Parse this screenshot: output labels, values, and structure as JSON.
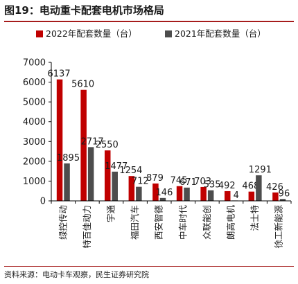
{
  "figure": {
    "title": "图19：电动重卡配套电机市场格局",
    "source": "资料来源：电动卡车观察，民生证券研究院"
  },
  "colors": {
    "accent": "#a61c1c",
    "series_2022": "#c00000",
    "series_2021": "#4d4d4d"
  },
  "chart_data": {
    "type": "bar",
    "categories": [
      "绿控传动",
      "特百佳动力",
      "宇通",
      "福田汽车",
      "西安智德",
      "中车时代",
      "众联能创",
      "朗高电机",
      "法士特",
      "徐工新能源"
    ],
    "series": [
      {
        "name": "2022年配套数量（台）",
        "values": [
          6137,
          5610,
          2550,
          1254,
          879,
          745,
          703,
          492,
          468,
          426
        ]
      },
      {
        "name": "2021年配套数量（台）",
        "values": [
          1895,
          2717,
          1477,
          712,
          146,
          671,
          535,
          4,
          1291,
          96
        ]
      }
    ],
    "ylim": [
      0,
      7000
    ],
    "yticks": [
      0,
      1000,
      2000,
      3000,
      4000,
      5000,
      6000,
      7000
    ],
    "legend_position": "top",
    "grid": false
  }
}
